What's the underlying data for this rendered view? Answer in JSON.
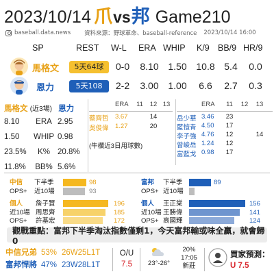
{
  "title": {
    "date": "2023/10/14",
    "team_away": "爪",
    "vs": "vs",
    "team_home": "邦",
    "game": "Game210"
  },
  "source": {
    "handle": "baseball.data.news",
    "credit": "資料來源：野球革命、baseball-reference",
    "stamp": "2023/10/14  16:00"
  },
  "header": [
    "SP",
    "REST",
    "W-L",
    "ERA",
    "WHIP",
    "K/9",
    "BB/9",
    "HR/9"
  ],
  "pitchers": [
    {
      "name": "馬格文",
      "rest": "5天64球",
      "wl": "0-0",
      "era": "8.10",
      "whip": "1.50",
      "k9": "10.8",
      "bb9": "5.4",
      "hr9": "0.0",
      "color": "#e8a116",
      "badge": "yellow"
    },
    {
      "name": "恩力",
      "rest": "5天108球",
      "wl": "2-2",
      "era": "3.00",
      "whip": "1.00",
      "k9": "6.6",
      "bb9": "2.7",
      "hr9": "0.3",
      "color": "#1f5fb8",
      "badge": "blue"
    }
  ],
  "recent": {
    "p1": "馬格文",
    "label": "(近3場)",
    "p2": "恩力",
    "rows": [
      {
        "a": "8.10",
        "stat": "ERA",
        "b": "2.95"
      },
      {
        "a": "1.50",
        "stat": "WHIP",
        "b": "0.98"
      },
      {
        "a": "23.5%",
        "stat": "K%",
        "b": "20.8%"
      },
      {
        "a": "11.8%",
        "stat": "BB%",
        "b": "5.6%"
      }
    ]
  },
  "bullpen_left": {
    "cols": [
      "ERA",
      "11",
      "12",
      "13"
    ],
    "rows": [
      {
        "name": "蔡齊哲",
        "era": "3.67",
        "d11": "",
        "d12": "14",
        "d13": ""
      },
      {
        "name": "吳俊偉",
        "era": "1.27",
        "d11": "",
        "d12": "20",
        "d13": ""
      }
    ],
    "note": "(牛欄近3日用球數)"
  },
  "bullpen_right": {
    "cols": [
      "ERA",
      "11",
      "12",
      "13"
    ],
    "rows": [
      {
        "name": "岳少華",
        "era": "3.46",
        "d11": "23",
        "d12": "",
        "d13": ""
      },
      {
        "name": "藍愷青",
        "era": "4.50",
        "d11": "17",
        "d12": "",
        "d13": ""
      },
      {
        "name": "李子強",
        "era": "4.76",
        "d11": "12",
        "d12": "",
        "d13": "14"
      },
      {
        "name": "曾峻岳",
        "era": "1.24",
        "d11": "12",
        "d12": "",
        "d13": ""
      },
      {
        "name": "富藍戈",
        "era": "0.98",
        "d11": "17",
        "d12": "",
        "d13": ""
      }
    ]
  },
  "team_ops_left": {
    "team": "中信",
    "label": "OPS+",
    "rows": [
      {
        "period": "下半季",
        "value": "98",
        "num": 98
      },
      {
        "period": "近10場",
        "value": "93",
        "num": 93
      }
    ]
  },
  "team_ops_right": {
    "team": "富邦",
    "label": "OPS+",
    "rows": [
      {
        "period": "下半季",
        "value": "89",
        "num": 89
      },
      {
        "period": "近10場",
        "value": "",
        "num": 20
      }
    ]
  },
  "ind_left": {
    "h1": "個人",
    "h2": "近10場",
    "h3": "OPS+",
    "rows": [
      {
        "name": "詹子賢",
        "value": "196",
        "num": 196
      },
      {
        "name": "周思齊",
        "value": "185",
        "num": 185
      },
      {
        "name": "許基宏",
        "value": "172",
        "num": 172
      }
    ]
  },
  "ind_right": {
    "h1": "個人",
    "h2": "近10場",
    "h3": "OPS+",
    "rows": [
      {
        "name": "王正棠",
        "value": "156",
        "num": 156
      },
      {
        "name": "王勝偉",
        "value": "141",
        "num": 141
      },
      {
        "name": "高國輝",
        "value": "124",
        "num": 124
      }
    ]
  },
  "callout": "觀戰重點：富邦下半季淘汰指數僅剩1，今天富邦輸或味全贏，就會歸0",
  "footer": {
    "brothers": {
      "team": "中信兄弟",
      "pct": "53%",
      "record": "26W25L1T"
    },
    "guardians": {
      "team": "富邦悍將",
      "pct": "47%",
      "record": "23W28L1T"
    },
    "ou_label": "O/U",
    "ou_value": "7.5",
    "temp": "23°-26°",
    "chance": "20%",
    "time": "17:05",
    "venue": "新莊",
    "pick_label": "買家預測：",
    "pick_value": "U  7.5"
  },
  "colors": {
    "brothers": "#e8a116",
    "guardians": "#1f5fb8",
    "pick": "#d9262c"
  }
}
